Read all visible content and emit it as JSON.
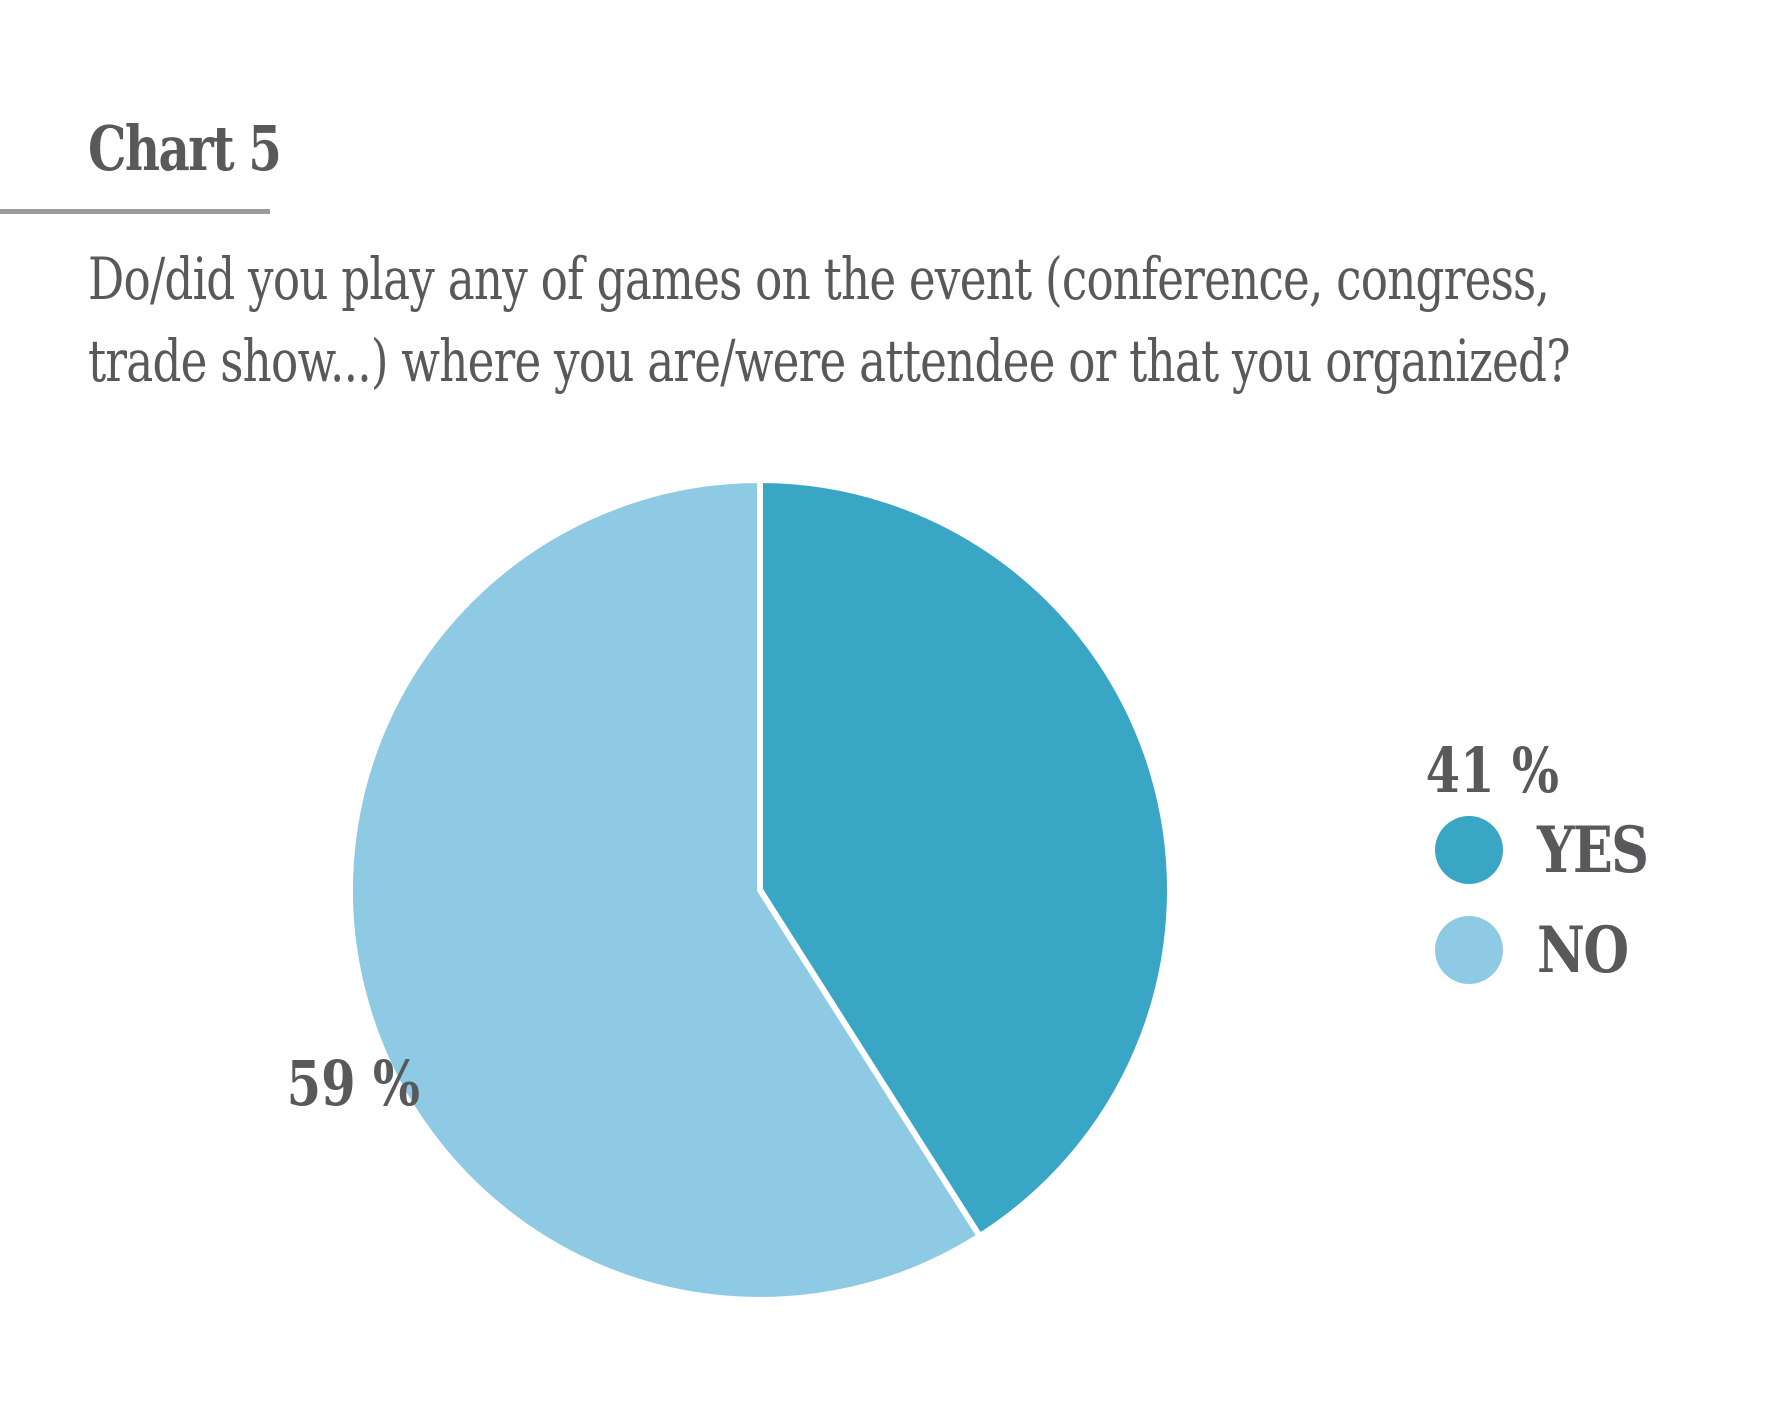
{
  "header": {
    "chart_label": "Chart 5"
  },
  "chart_data": {
    "type": "pie",
    "title": "Do/did you play any of games on the event (conference, congress, trade show...) where you are/were attendee or that you organized?",
    "title_lines": [
      "Do/did you play any of games on the event (conference, congress,",
      "trade show...) where you are/were attendee or that you organized?"
    ],
    "categories": [
      "YES",
      "NO"
    ],
    "values": [
      41,
      59
    ],
    "data_labels": [
      "41 %",
      "59 %"
    ],
    "colors": [
      "#3aa6c5",
      "#8fcae4"
    ],
    "legend_position": "right",
    "start": "12 o'clock, clockwise"
  }
}
